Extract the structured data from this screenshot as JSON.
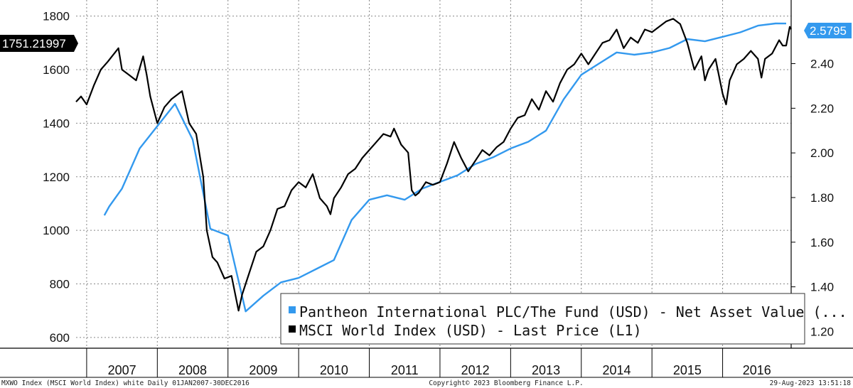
{
  "chart_data": {
    "type": "line",
    "title": "",
    "x_range": [
      2006.85,
      2016.97
    ],
    "left_axis": {
      "ylim": [
        560,
        1860
      ],
      "ticks": [
        600,
        800,
        1000,
        1200,
        1400,
        1600,
        1800
      ]
    },
    "right_axis": {
      "ylim": [
        1.125,
        2.685
      ],
      "ticks": [
        "1.20",
        "1.40",
        "1.60",
        "1.80",
        "2.00",
        "2.20",
        "2.40"
      ]
    },
    "year_labels": [
      "2007",
      "2008",
      "2009",
      "2010",
      "2011",
      "2012",
      "2013",
      "2014",
      "2015",
      "2016"
    ],
    "grid": true,
    "legend": {
      "position": "bottom-right",
      "entries": [
        {
          "label": "Pantheon International PLC/The Fund (USD) - Net Asset Value (...",
          "color": "#3399ee"
        },
        {
          "label": "MSCI World Index (USD) - Last Price (L1)",
          "color": "#000000"
        }
      ]
    },
    "series": [
      {
        "name": "MSCI World Index (USD) - Last Price",
        "axis": "left",
        "color": "#000000",
        "last_value_label": "1751.21997",
        "x": [
          2006.85,
          2006.92,
          2007.0,
          2007.1,
          2007.2,
          2007.3,
          2007.45,
          2007.5,
          2007.6,
          2007.7,
          2007.8,
          2007.85,
          2007.9,
          2008.0,
          2008.1,
          2008.2,
          2008.35,
          2008.45,
          2008.55,
          2008.65,
          2008.7,
          2008.78,
          2008.85,
          2008.95,
          2009.05,
          2009.15,
          2009.2,
          2009.3,
          2009.4,
          2009.5,
          2009.6,
          2009.7,
          2009.8,
          2009.9,
          2010.0,
          2010.1,
          2010.2,
          2010.3,
          2010.4,
          2010.45,
          2010.5,
          2010.6,
          2010.7,
          2010.8,
          2010.9,
          2011.0,
          2011.1,
          2011.2,
          2011.3,
          2011.35,
          2011.45,
          2011.55,
          2011.6,
          2011.65,
          2011.7,
          2011.8,
          2011.9,
          2012.0,
          2012.1,
          2012.2,
          2012.3,
          2012.4,
          2012.5,
          2012.6,
          2012.7,
          2012.8,
          2012.9,
          2013.0,
          2013.1,
          2013.2,
          2013.3,
          2013.4,
          2013.5,
          2013.6,
          2013.7,
          2013.8,
          2013.9,
          2014.0,
          2014.1,
          2014.2,
          2014.3,
          2014.4,
          2014.5,
          2014.6,
          2014.7,
          2014.8,
          2014.9,
          2015.0,
          2015.1,
          2015.2,
          2015.3,
          2015.4,
          2015.5,
          2015.6,
          2015.7,
          2015.75,
          2015.8,
          2015.9,
          2016.0,
          2016.05,
          2016.1,
          2016.2,
          2016.3,
          2016.4,
          2016.5,
          2016.55,
          2016.6,
          2016.7,
          2016.8,
          2016.85,
          2016.9,
          2016.95,
          2016.97
        ],
        "values": [
          1480,
          1500,
          1470,
          1540,
          1600,
          1630,
          1680,
          1600,
          1580,
          1560,
          1650,
          1580,
          1500,
          1400,
          1460,
          1490,
          1520,
          1400,
          1360,
          1200,
          1000,
          900,
          880,
          820,
          830,
          700,
          760,
          840,
          920,
          940,
          1000,
          1080,
          1090,
          1150,
          1180,
          1160,
          1210,
          1120,
          1090,
          1060,
          1120,
          1160,
          1210,
          1230,
          1270,
          1300,
          1330,
          1360,
          1350,
          1380,
          1320,
          1290,
          1150,
          1130,
          1140,
          1180,
          1170,
          1180,
          1250,
          1330,
          1270,
          1220,
          1260,
          1300,
          1280,
          1310,
          1330,
          1380,
          1420,
          1430,
          1490,
          1450,
          1520,
          1480,
          1550,
          1600,
          1620,
          1660,
          1620,
          1660,
          1700,
          1710,
          1750,
          1680,
          1720,
          1700,
          1750,
          1740,
          1760,
          1780,
          1790,
          1770,
          1700,
          1600,
          1650,
          1560,
          1600,
          1640,
          1510,
          1470,
          1560,
          1620,
          1640,
          1670,
          1640,
          1570,
          1640,
          1660,
          1710,
          1690,
          1690,
          1760,
          1751
        ]
      },
      {
        "name": "Pantheon International PLC/The Fund (USD) - Net Asset Value",
        "axis": "right",
        "color": "#3399ee",
        "last_value_label": "2.5795",
        "x": [
          2007.25,
          2007.32,
          2007.5,
          2007.75,
          2008.0,
          2008.25,
          2008.5,
          2008.75,
          2009.0,
          2009.25,
          2009.5,
          2009.75,
          2010.0,
          2010.25,
          2010.5,
          2010.75,
          2011.0,
          2011.25,
          2011.5,
          2011.75,
          2012.0,
          2012.25,
          2012.5,
          2012.75,
          2013.0,
          2013.25,
          2013.5,
          2013.75,
          2014.0,
          2014.25,
          2014.5,
          2014.75,
          2015.0,
          2015.25,
          2015.5,
          2015.75,
          2016.0,
          2016.25,
          2016.5,
          2016.75,
          2016.9
        ],
        "values": [
          1.72,
          1.76,
          1.84,
          2.02,
          2.12,
          2.22,
          2.06,
          1.66,
          1.63,
          1.29,
          1.36,
          1.42,
          1.44,
          1.48,
          1.52,
          1.7,
          1.79,
          1.81,
          1.79,
          1.84,
          1.87,
          1.9,
          1.95,
          1.98,
          2.02,
          2.05,
          2.1,
          2.24,
          2.35,
          2.4,
          2.45,
          2.44,
          2.45,
          2.47,
          2.51,
          2.5,
          2.52,
          2.54,
          2.57,
          2.58,
          2.5795
        ]
      }
    ]
  },
  "footer": {
    "left": "MXWO Index (MSCI World Index) white  Daily 01JAN2007-30DEC2016",
    "center": "Copyright© 2023 Bloomberg Finance L.P.",
    "right": "29-Aug-2023 13:51:18"
  }
}
